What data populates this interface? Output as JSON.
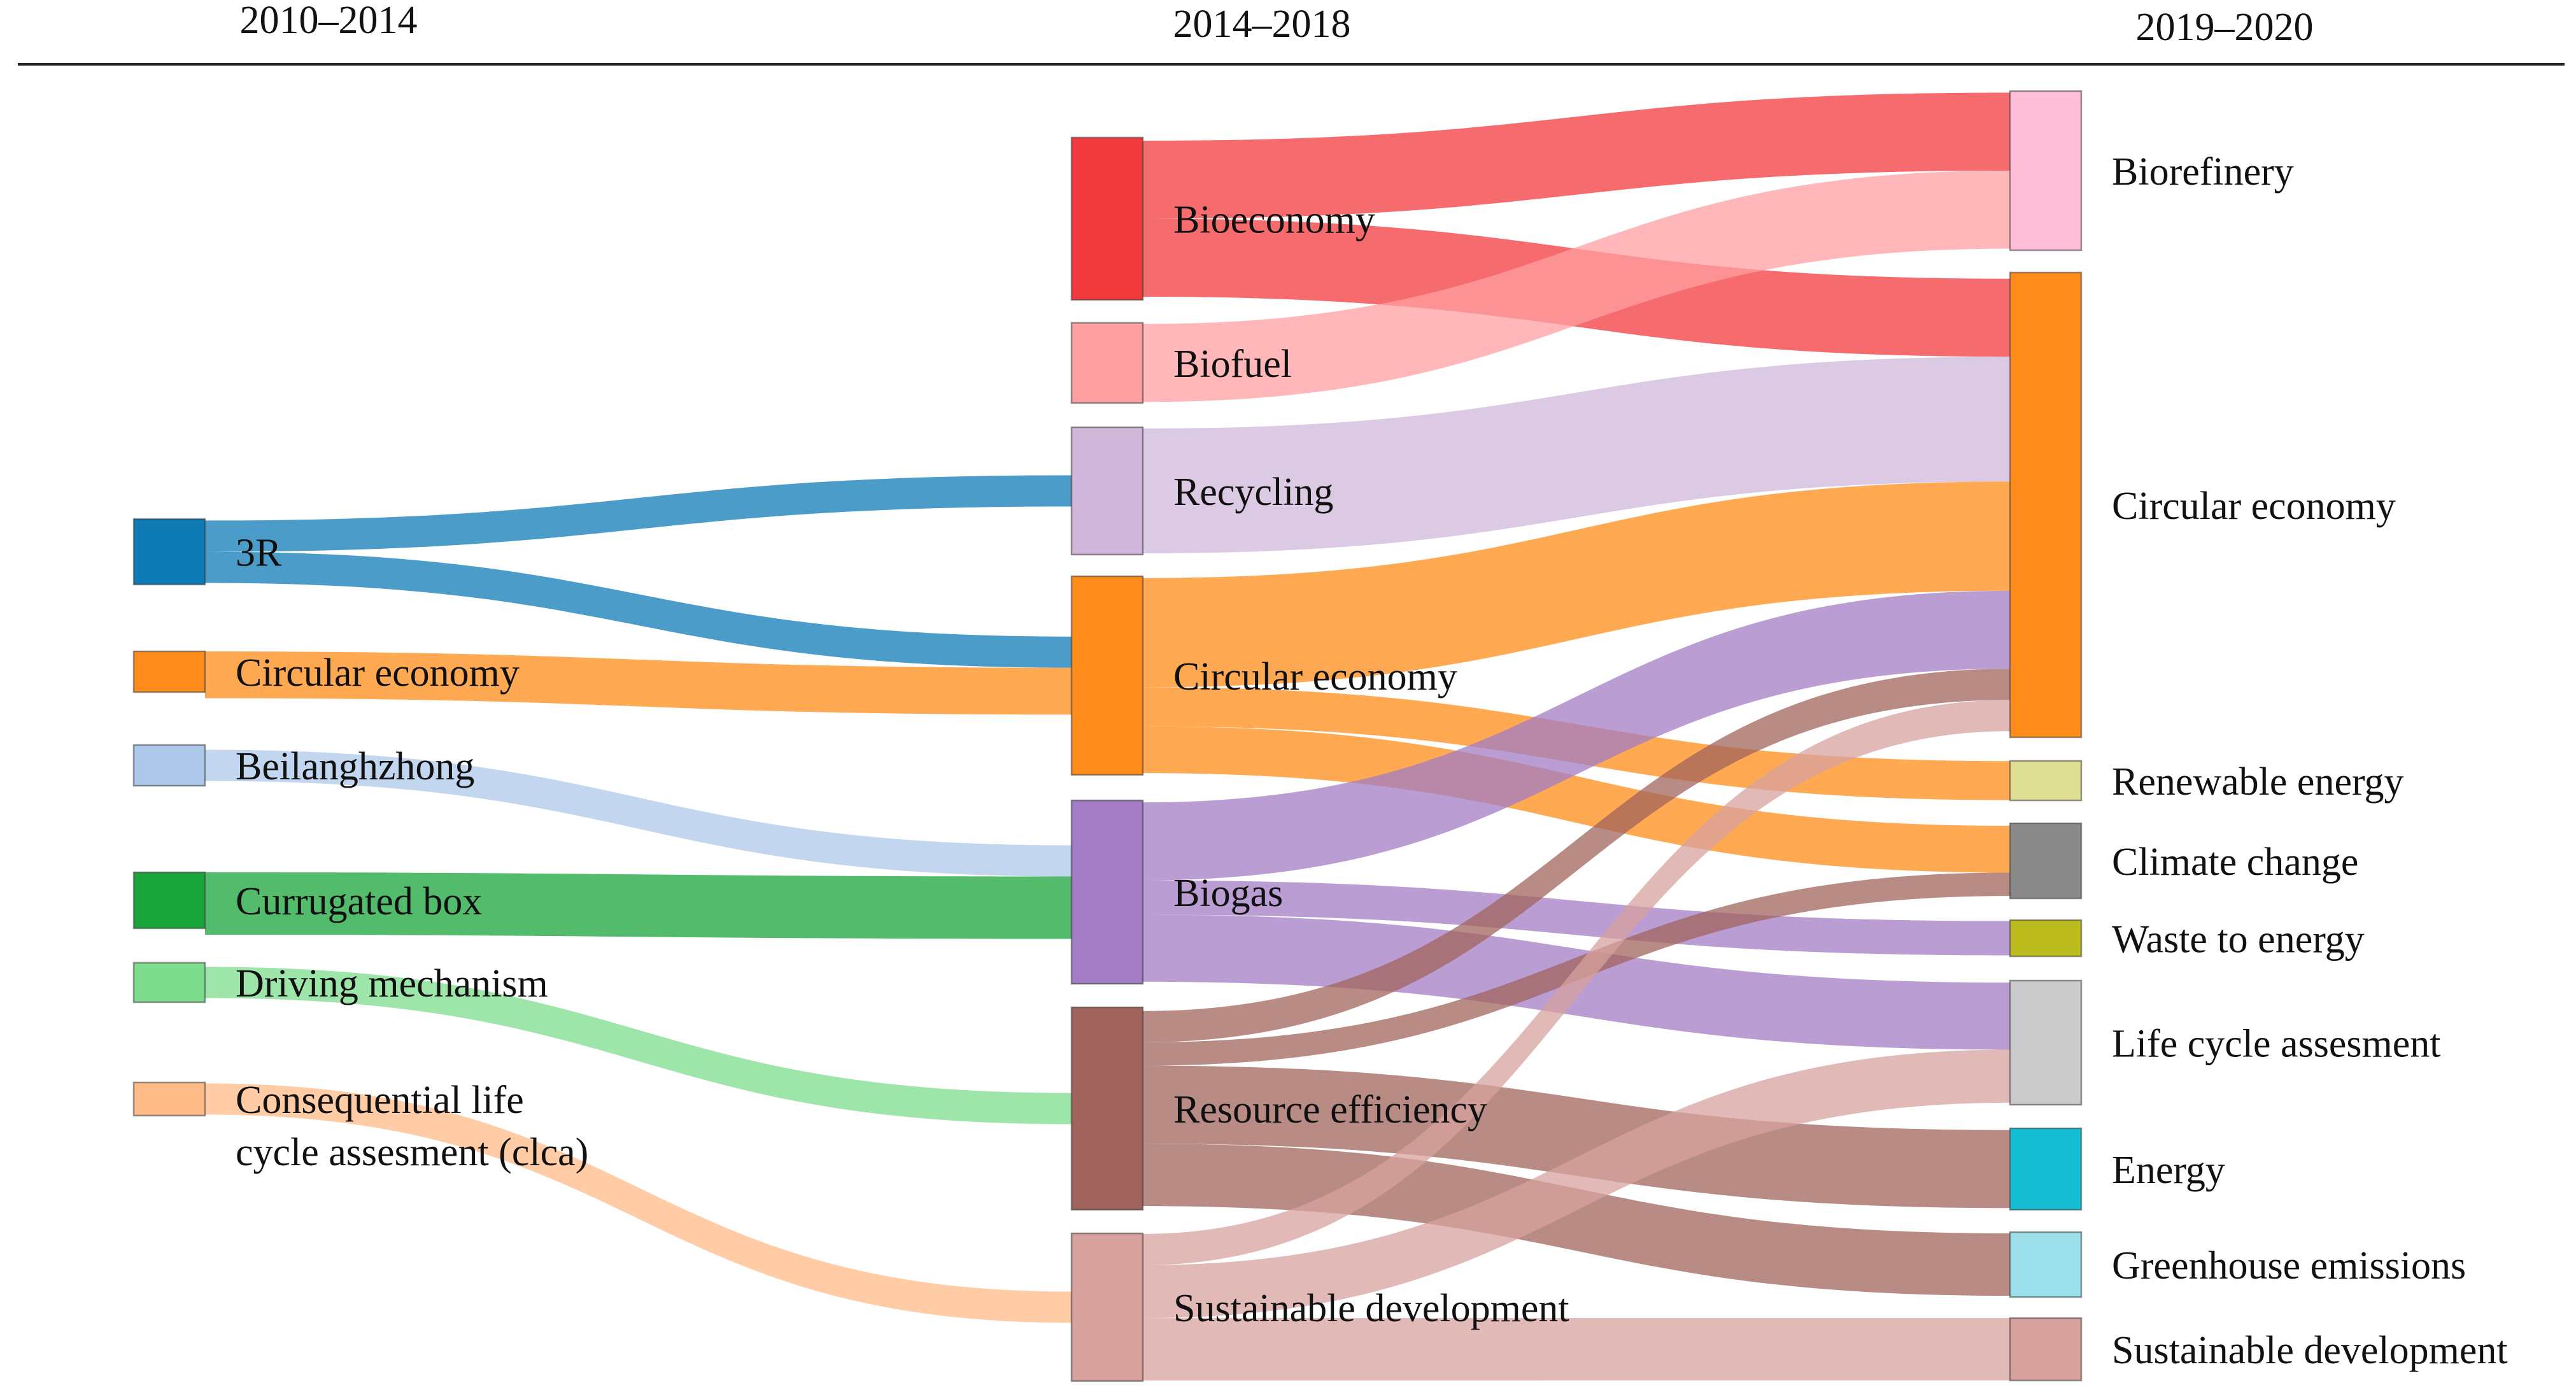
{
  "periods": [
    "2010–2014",
    "2014–2018",
    "2019–2020"
  ],
  "colors": {
    "3R": "#0f7bb5",
    "circular_economy": "#ff8c1a",
    "beilanghzhong": "#adc8ea",
    "currugated_box": "#1aa53b",
    "driving_mechanism": "#7edc8e",
    "clca": "#ffbb87",
    "bioeconomy": "#f13a3d",
    "biofuel": "#ff9fa1",
    "recycling": "#d0b7d9",
    "biogas": "#a27cc4",
    "resource_efficiency": "#a1645c",
    "sustainable_development": "#d7a29d",
    "biorefinery": "#ffbfd8",
    "renewable_energy": "#dfdf96",
    "climate_change": "#8a8a8a",
    "waste_to_energy": "#bcbc1e",
    "life_cycle_assesment": "#cbcbcb",
    "energy": "#16bed4",
    "greenhouse_emissions": "#9adfe9"
  },
  "chart_data": {
    "type": "sankey",
    "title": "",
    "columns": [
      "2010–2014",
      "2014–2018",
      "2019–2020"
    ],
    "nodes": [
      {
        "id": "a_3r",
        "label": "3R",
        "column": 0,
        "value": 4,
        "color": "3R",
        "label_pos": "inside"
      },
      {
        "id": "a_ce",
        "label": "Circular economy",
        "column": 0,
        "value": 3,
        "color": "circular_economy",
        "label_pos": "inside"
      },
      {
        "id": "a_bl",
        "label": "Beilanghzhong",
        "column": 0,
        "value": 2,
        "color": "beilanghzhong",
        "label_pos": "inside"
      },
      {
        "id": "a_cb",
        "label": "Currugated box",
        "column": 0,
        "value": 4,
        "color": "currugated_box",
        "label_pos": "inside"
      },
      {
        "id": "a_dm",
        "label": "Driving mechanism",
        "column": 0,
        "value": 2,
        "color": "driving_mechanism",
        "label_pos": "inside"
      },
      {
        "id": "a_clca",
        "label": "Consequential life",
        "label2": "cycle assesment (clca)",
        "column": 0,
        "value": 2,
        "color": "clca",
        "label_pos": "inside"
      },
      {
        "id": "b_bio",
        "label": "Bioeconomy",
        "column": 1,
        "value": 10,
        "color": "bioeconomy",
        "label_pos": "inside"
      },
      {
        "id": "b_bf",
        "label": "Biofuel",
        "column": 1,
        "value": 5,
        "color": "biofuel",
        "label_pos": "inside"
      },
      {
        "id": "b_rec",
        "label": "Recycling",
        "column": 1,
        "value": 8,
        "color": "recycling",
        "label_pos": "inside"
      },
      {
        "id": "b_ce",
        "label": "Circular economy",
        "column": 1,
        "value": 12.5,
        "color": "circular_economy",
        "label_pos": "inside"
      },
      {
        "id": "b_bg",
        "label": "Biogas",
        "column": 1,
        "value": 11.5,
        "color": "biogas",
        "label_pos": "inside"
      },
      {
        "id": "b_re",
        "label": "Resource efficiency",
        "column": 1,
        "value": 12.5,
        "color": "resource_efficiency",
        "label_pos": "inside"
      },
      {
        "id": "b_sd",
        "label": "Sustainable development",
        "column": 1,
        "value": 9.5,
        "color": "sustainable_development",
        "label_pos": "inside"
      },
      {
        "id": "c_bref",
        "label": "Biorefinery",
        "column": 2,
        "value": 10,
        "color": "biorefinery",
        "label_pos": "right"
      },
      {
        "id": "c_ce",
        "label": "Circular economy",
        "column": 2,
        "value": 29,
        "color": "circular_economy",
        "label_pos": "right"
      },
      {
        "id": "c_ren",
        "label": "Renewable energy",
        "column": 2,
        "value": 2.5,
        "color": "renewable_energy",
        "label_pos": "right"
      },
      {
        "id": "c_cc",
        "label": "Climate change",
        "column": 2,
        "value": 4.5,
        "color": "climate_change",
        "label_pos": "right"
      },
      {
        "id": "c_wte",
        "label": "Waste to energy",
        "column": 2,
        "value": 2.2,
        "color": "waste_to_energy",
        "label_pos": "right"
      },
      {
        "id": "c_lca",
        "label": "Life cycle assesment",
        "column": 2,
        "value": 7.7,
        "color": "life_cycle_assesment",
        "label_pos": "right"
      },
      {
        "id": "c_en",
        "label": "Energy",
        "column": 2,
        "value": 5,
        "color": "energy",
        "label_pos": "right"
      },
      {
        "id": "c_ghg",
        "label": "Greenhouse emissions",
        "column": 2,
        "value": 4,
        "color": "greenhouse_emissions",
        "label_pos": "right"
      },
      {
        "id": "c_sd",
        "label": "Sustainable development",
        "column": 2,
        "value": 4,
        "color": "sustainable_development",
        "label_pos": "right"
      }
    ],
    "links": [
      {
        "source": "a_3r",
        "target": "b_rec",
        "value": 2
      },
      {
        "source": "a_3r",
        "target": "b_ce",
        "value": 2
      },
      {
        "source": "a_ce",
        "target": "b_ce",
        "value": 3
      },
      {
        "source": "a_bl",
        "target": "b_bg",
        "value": 2
      },
      {
        "source": "a_cb",
        "target": "b_bg",
        "value": 4
      },
      {
        "source": "a_dm",
        "target": "b_re",
        "value": 2
      },
      {
        "source": "a_clca",
        "target": "b_sd",
        "value": 2
      },
      {
        "source": "b_bio",
        "target": "c_bref",
        "value": 5
      },
      {
        "source": "b_bio",
        "target": "c_ce",
        "value": 5
      },
      {
        "source": "b_bf",
        "target": "c_bref",
        "value": 5
      },
      {
        "source": "b_rec",
        "target": "c_ce",
        "value": 8
      },
      {
        "source": "b_ce",
        "target": "c_ce",
        "value": 7
      },
      {
        "source": "b_ce",
        "target": "c_ren",
        "value": 2.5
      },
      {
        "source": "b_ce",
        "target": "c_cc",
        "value": 3
      },
      {
        "source": "b_bg",
        "target": "c_ce",
        "value": 5
      },
      {
        "source": "b_bg",
        "target": "c_wte",
        "value": 2.2
      },
      {
        "source": "b_bg",
        "target": "c_lca",
        "value": 4.3
      },
      {
        "source": "b_re",
        "target": "c_ce",
        "value": 2
      },
      {
        "source": "b_re",
        "target": "c_cc",
        "value": 1.5
      },
      {
        "source": "b_re",
        "target": "c_en",
        "value": 5
      },
      {
        "source": "b_re",
        "target": "c_ghg",
        "value": 4
      },
      {
        "source": "b_sd",
        "target": "c_ce",
        "value": 2
      },
      {
        "source": "b_sd",
        "target": "c_lca",
        "value": 3.4
      },
      {
        "source": "b_sd",
        "target": "c_sd",
        "value": 4
      }
    ]
  }
}
